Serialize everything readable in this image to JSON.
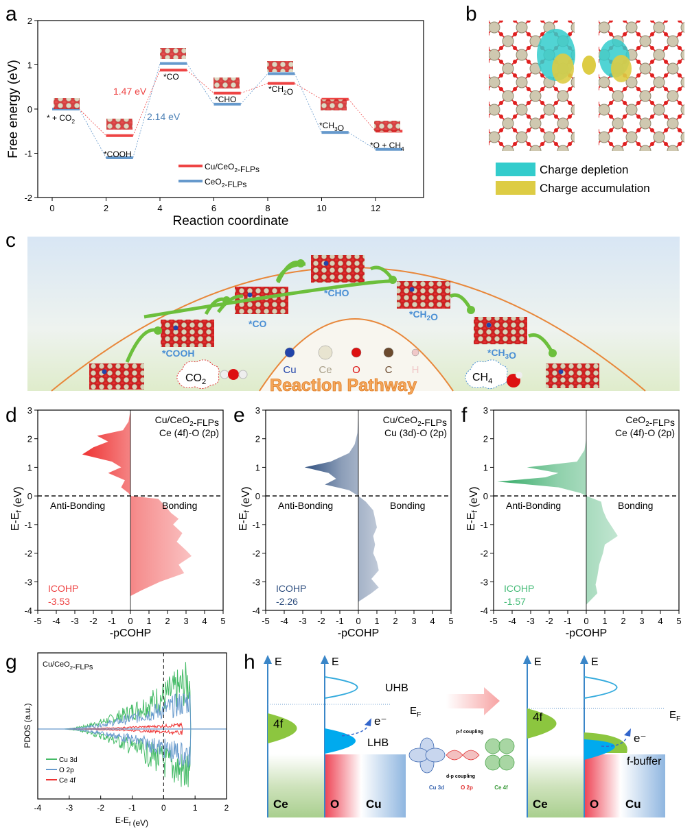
{
  "panel_letters": [
    "a",
    "b",
    "c",
    "d",
    "e",
    "f",
    "g",
    "h"
  ],
  "colors": {
    "cu_ceo2": "#ee4444",
    "ceo2": "#6699cc",
    "green": "#44bb77",
    "navy": "#2f4f7f",
    "orange": "#e8873a",
    "cyan": "#33cccc",
    "yellow": "#ddcc44"
  },
  "chart_data": [
    {
      "id": "a",
      "type": "line",
      "title": "",
      "xlabel": "Reaction coordinate",
      "ylabel": "Free energy (eV)",
      "xlim": [
        -0.5,
        13.5
      ],
      "ylim": [
        -2,
        2
      ],
      "xticks": [
        "0",
        "2",
        "4",
        "6",
        "8",
        "10",
        "12"
      ],
      "yticks": [
        "-2",
        "-1",
        "0",
        "1",
        "2"
      ],
      "x": [
        0,
        2,
        4,
        6,
        8,
        10,
        12
      ],
      "state_labels": [
        "* + CO_2",
        "*COOH",
        "*CO",
        "*CHO",
        "*CH_2O",
        "*CH_3O",
        "*O + CH_4"
      ],
      "series": [
        {
          "name": "Cu/CeO_2-FLPs",
          "color": "#ee4444",
          "values": [
            0,
            -0.6,
            0.88,
            0.36,
            0.58,
            0.22,
            -0.5
          ]
        },
        {
          "name": "CeO_2-FLPs",
          "color": "#6699cc",
          "values": [
            0,
            -1.1,
            1.03,
            0.11,
            0.8,
            -0.53,
            -0.91
          ]
        }
      ],
      "annotations": [
        "1.47 eV",
        "2.14 eV"
      ],
      "legend": "bottom-center"
    },
    {
      "id": "d",
      "type": "area",
      "title_lines": [
        "Cu/CeO_2-FLPs",
        "Ce (4f)-O (2p)"
      ],
      "xlabel": "-pCOHP",
      "ylabel": "E-E_f (eV)",
      "xlim": [
        -5,
        5
      ],
      "ylim": [
        -4,
        3
      ],
      "xticks": [
        "-5",
        "-4",
        "-3",
        "-2",
        "-1",
        "0",
        "1",
        "2",
        "3",
        "4",
        "5"
      ],
      "yticks": [
        "-4",
        "-3",
        "-2",
        "-1",
        "0",
        "1",
        "2",
        "3"
      ],
      "region_labels": [
        "Anti-Bonding",
        "Bonding"
      ],
      "icohp_label": "ICOHP",
      "icohp_value": "-3.53",
      "color": "#ee4444",
      "curve": {
        "y": [
          3,
          2.6,
          2.3,
          2.1,
          1.9,
          1.7,
          1.45,
          1.2,
          1.0,
          0.8,
          0.55,
          0.3,
          0.1,
          0,
          -0.1,
          -0.3,
          -0.6,
          -0.8,
          -1.0,
          -1.3,
          -1.6,
          -1.9,
          -2.1,
          -2.4,
          -2.7,
          -3.0,
          -3.3,
          -3.5
        ],
        "x": [
          0,
          -0.1,
          -0.4,
          -1.8,
          -1.2,
          -2.0,
          -2.6,
          -1.0,
          -0.5,
          -1.2,
          -0.3,
          -0.5,
          -0.1,
          0,
          1.5,
          1.8,
          2.2,
          2.6,
          2.3,
          2.8,
          2.5,
          3.0,
          3.3,
          2.6,
          2.9,
          1.6,
          0.6,
          0
        ]
      }
    },
    {
      "id": "e",
      "type": "area",
      "title_lines": [
        "Cu/CeO_2-FLPs",
        "Cu (3d)-O (2p)"
      ],
      "xlabel": "-pCOHP",
      "ylabel": "E-E_f (eV)",
      "xlim": [
        -5,
        5
      ],
      "ylim": [
        -4,
        3
      ],
      "xticks": [
        "-5",
        "-4",
        "-3",
        "-2",
        "-1",
        "0",
        "1",
        "2",
        "3",
        "4",
        "5"
      ],
      "yticks": [
        "-4",
        "-3",
        "-2",
        "-1",
        "0",
        "1",
        "2",
        "3"
      ],
      "region_labels": [
        "Anti-Bonding",
        "Bonding"
      ],
      "icohp_label": "ICOHP",
      "icohp_value": "-2.26",
      "color": "#2f4f7f",
      "curve": {
        "y": [
          3,
          2.2,
          1.8,
          1.5,
          1.2,
          1.0,
          0.8,
          0.6,
          0.4,
          0.2,
          0,
          -0.2,
          -0.5,
          -0.8,
          -1.1,
          -1.4,
          -1.7,
          -2.0,
          -2.3,
          -2.6,
          -2.9,
          -3.2,
          -3.4,
          -3.7
        ],
        "x": [
          0,
          -0.05,
          -0.2,
          -0.5,
          -1.5,
          -2.9,
          -1.6,
          -1.2,
          -1.8,
          -0.5,
          0,
          0.4,
          0.8,
          0.9,
          1.0,
          0.8,
          0.9,
          0.8,
          1.0,
          1.1,
          0.7,
          1.1,
          0.7,
          0
        ]
      }
    },
    {
      "id": "f",
      "type": "area",
      "title_lines": [
        "CeO_2-FLPs",
        "Ce (4f)-O (2p)"
      ],
      "xlabel": "-pCOHP",
      "ylabel": "E-E_f (eV)",
      "xlim": [
        -5,
        5
      ],
      "ylim": [
        -4,
        3
      ],
      "xticks": [
        "-5",
        "-4",
        "-3",
        "-2",
        "-1",
        "0",
        "1",
        "2",
        "3",
        "4",
        "5"
      ],
      "yticks": [
        "-4",
        "-3",
        "-2",
        "-1",
        "0",
        "1",
        "2",
        "3"
      ],
      "region_labels": [
        "Anti-Bonding",
        "Bonding"
      ],
      "icohp_label": "ICOHP",
      "icohp_value": "-1.57",
      "color": "#44bb77",
      "curve": {
        "y": [
          2,
          1.6,
          1.2,
          1.0,
          0.8,
          0.65,
          0.5,
          0.3,
          0.1,
          0,
          -0.2,
          -0.5,
          -0.8,
          -1.1,
          -1.4,
          -1.7,
          -2.0,
          -2.4,
          -2.8,
          -3.1,
          -3.4,
          -3.8
        ],
        "x": [
          0,
          -0.1,
          -0.5,
          -3.2,
          -1.5,
          -2.2,
          -4.8,
          -1.5,
          -0.3,
          0,
          0.8,
          0.9,
          1.1,
          1.4,
          1.7,
          1.0,
          0.9,
          0.7,
          0.6,
          0.5,
          0.6,
          0
        ]
      }
    },
    {
      "id": "g",
      "type": "line",
      "title": "Cu/CeO_2-FLPs",
      "xlabel": "E-E_f (eV)",
      "ylabel": "PDOS (a.u.)",
      "xlim": [
        -4,
        2
      ],
      "xticks": [
        "-4",
        "-3",
        "-2",
        "-1",
        "0",
        "1",
        "2"
      ],
      "series": [
        {
          "name": "Cu 3d",
          "color": "#44bb66"
        },
        {
          "name": "O 2p",
          "color": "#6699cc"
        },
        {
          "name": "Ce 4f",
          "color": "#ee3333"
        }
      ],
      "legend": "bottom-left"
    }
  ],
  "panel_b": {
    "legend": [
      {
        "label": "Charge depletion",
        "color": "#33cccc"
      },
      {
        "label": "Charge accumulation",
        "color": "#ddcc44"
      }
    ]
  },
  "panel_c": {
    "intermediates": [
      "*COOH",
      "*CO",
      "*CHO",
      "*CH_2O",
      "*CH_3O"
    ],
    "atoms": [
      {
        "label": "Cu",
        "color": "#2244aa"
      },
      {
        "label": "Ce",
        "color": "#e8e4d0"
      },
      {
        "label": "O",
        "color": "#dd1111"
      },
      {
        "label": "C",
        "color": "#6b4a2e"
      },
      {
        "label": "H",
        "color": "#f0c8c8"
      }
    ],
    "title": "Reaction Pathway",
    "reactant": "CO_2",
    "product": "CH_4"
  },
  "panel_h": {
    "axis_label": "E",
    "fermi": "E_F",
    "band_4f": "4f",
    "uhb": "UHB",
    "lhb": "LHB",
    "electron": "e⁻",
    "fbuffer": "f-buffer",
    "bottom_labels": [
      "Ce",
      "O",
      "Cu"
    ],
    "pf_coupling": "p-f coupling",
    "dp_coupling": "d-p coupling",
    "orbitals": [
      "Cu 3d",
      "O 2p",
      "Ce 4f"
    ]
  }
}
